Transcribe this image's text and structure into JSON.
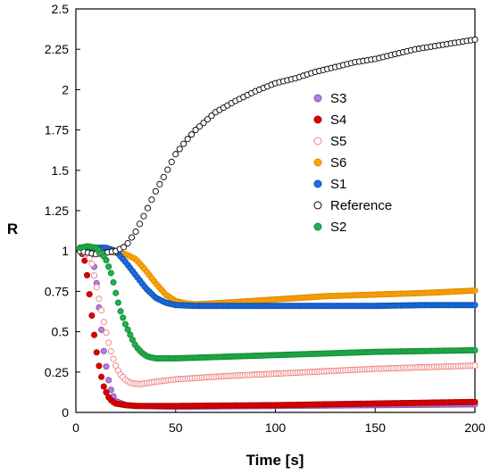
{
  "chart_data": {
    "type": "scatter",
    "xlabel": "Time [s]",
    "ylabel": "R",
    "xlim": [
      0,
      200
    ],
    "ylim": [
      0,
      2.5
    ],
    "xticks": [
      0,
      50,
      100,
      150,
      200
    ],
    "yticks": [
      0,
      0.25,
      0.5,
      0.75,
      1,
      1.25,
      1.5,
      1.75,
      2,
      2.25,
      2.5
    ],
    "ytick_labels": [
      "0",
      "0.25",
      "0.5",
      "0.75",
      "1",
      "1.25",
      "1.5",
      "1.75",
      "2",
      "2.25",
      "2.5"
    ],
    "xtick_labels": [
      "0",
      "50",
      "100",
      "150",
      "200"
    ],
    "grid": false,
    "legend_position": "center-right",
    "series": [
      {
        "name": "S3",
        "color": "#B57EDC",
        "edge": "#8A4FB8",
        "filled": true,
        "points": [
          [
            2,
            1.0
          ],
          [
            5,
            1.0
          ],
          [
            8,
            0.98
          ],
          [
            10,
            0.85
          ],
          [
            12,
            0.6
          ],
          [
            14,
            0.38
          ],
          [
            16,
            0.22
          ],
          [
            18,
            0.12
          ],
          [
            20,
            0.07
          ],
          [
            25,
            0.045
          ],
          [
            30,
            0.04
          ],
          [
            50,
            0.035
          ],
          [
            100,
            0.04
          ],
          [
            150,
            0.045
          ],
          [
            200,
            0.05
          ]
        ]
      },
      {
        "name": "S4",
        "color": "#E00000",
        "edge": "#B00000",
        "filled": true,
        "points": [
          [
            2,
            1.0
          ],
          [
            4,
            0.97
          ],
          [
            6,
            0.82
          ],
          [
            8,
            0.6
          ],
          [
            10,
            0.4
          ],
          [
            12,
            0.26
          ],
          [
            14,
            0.16
          ],
          [
            16,
            0.1
          ],
          [
            18,
            0.07
          ],
          [
            20,
            0.055
          ],
          [
            25,
            0.045
          ],
          [
            30,
            0.04
          ],
          [
            50,
            0.04
          ],
          [
            100,
            0.045
          ],
          [
            150,
            0.055
          ],
          [
            200,
            0.065
          ]
        ]
      },
      {
        "name": "S5",
        "color": "#FFFFFF",
        "edge": "#F08080",
        "filled": false,
        "points": [
          [
            2,
            1.0
          ],
          [
            6,
            0.98
          ],
          [
            8,
            0.92
          ],
          [
            10,
            0.8
          ],
          [
            12,
            0.68
          ],
          [
            14,
            0.56
          ],
          [
            16,
            0.45
          ],
          [
            18,
            0.36
          ],
          [
            20,
            0.29
          ],
          [
            22,
            0.24
          ],
          [
            25,
            0.2
          ],
          [
            28,
            0.18
          ],
          [
            32,
            0.175
          ],
          [
            40,
            0.19
          ],
          [
            50,
            0.205
          ],
          [
            75,
            0.225
          ],
          [
            100,
            0.24
          ],
          [
            125,
            0.255
          ],
          [
            150,
            0.27
          ],
          [
            175,
            0.28
          ],
          [
            200,
            0.29
          ]
        ]
      },
      {
        "name": "S6",
        "color": "#FFA500",
        "edge": "#E08800",
        "filled": true,
        "points": [
          [
            2,
            1.0
          ],
          [
            10,
            1.0
          ],
          [
            20,
            0.99
          ],
          [
            25,
            0.98
          ],
          [
            30,
            0.95
          ],
          [
            35,
            0.88
          ],
          [
            40,
            0.8
          ],
          [
            45,
            0.73
          ],
          [
            50,
            0.69
          ],
          [
            55,
            0.675
          ],
          [
            60,
            0.67
          ],
          [
            75,
            0.68
          ],
          [
            100,
            0.7
          ],
          [
            125,
            0.72
          ],
          [
            150,
            0.73
          ],
          [
            175,
            0.74
          ],
          [
            200,
            0.755
          ]
        ]
      },
      {
        "name": "S1",
        "color": "#1E6FE0",
        "edge": "#0A4FB0",
        "filled": true,
        "points": [
          [
            2,
            1.02
          ],
          [
            8,
            1.02
          ],
          [
            15,
            1.02
          ],
          [
            20,
            1.0
          ],
          [
            25,
            0.93
          ],
          [
            30,
            0.85
          ],
          [
            35,
            0.77
          ],
          [
            40,
            0.71
          ],
          [
            45,
            0.68
          ],
          [
            50,
            0.665
          ],
          [
            60,
            0.66
          ],
          [
            80,
            0.66
          ],
          [
            100,
            0.66
          ],
          [
            125,
            0.66
          ],
          [
            150,
            0.66
          ],
          [
            175,
            0.665
          ],
          [
            200,
            0.665
          ]
        ]
      },
      {
        "name": "Reference",
        "color": "#FFFFFF",
        "edge": "#000000",
        "filled": false,
        "points": [
          [
            2,
            1.0
          ],
          [
            10,
            0.98
          ],
          [
            20,
            1.0
          ],
          [
            25,
            1.03
          ],
          [
            30,
            1.12
          ],
          [
            35,
            1.24
          ],
          [
            40,
            1.37
          ],
          [
            45,
            1.48
          ],
          [
            50,
            1.6
          ],
          [
            55,
            1.68
          ],
          [
            60,
            1.75
          ],
          [
            70,
            1.86
          ],
          [
            80,
            1.93
          ],
          [
            90,
            1.99
          ],
          [
            100,
            2.04
          ],
          [
            110,
            2.07
          ],
          [
            120,
            2.11
          ],
          [
            130,
            2.14
          ],
          [
            140,
            2.17
          ],
          [
            150,
            2.19
          ],
          [
            160,
            2.22
          ],
          [
            170,
            2.25
          ],
          [
            180,
            2.27
          ],
          [
            190,
            2.29
          ],
          [
            200,
            2.31
          ]
        ]
      },
      {
        "name": "S2",
        "color": "#22B14C",
        "edge": "#138A34",
        "filled": true,
        "points": [
          [
            2,
            1.02
          ],
          [
            6,
            1.03
          ],
          [
            10,
            1.02
          ],
          [
            12,
            1.0
          ],
          [
            15,
            0.95
          ],
          [
            18,
            0.85
          ],
          [
            20,
            0.74
          ],
          [
            22,
            0.64
          ],
          [
            25,
            0.54
          ],
          [
            28,
            0.46
          ],
          [
            30,
            0.41
          ],
          [
            33,
            0.37
          ],
          [
            36,
            0.345
          ],
          [
            40,
            0.335
          ],
          [
            50,
            0.335
          ],
          [
            75,
            0.345
          ],
          [
            100,
            0.355
          ],
          [
            125,
            0.365
          ],
          [
            150,
            0.375
          ],
          [
            175,
            0.38
          ],
          [
            200,
            0.385
          ]
        ]
      }
    ]
  }
}
